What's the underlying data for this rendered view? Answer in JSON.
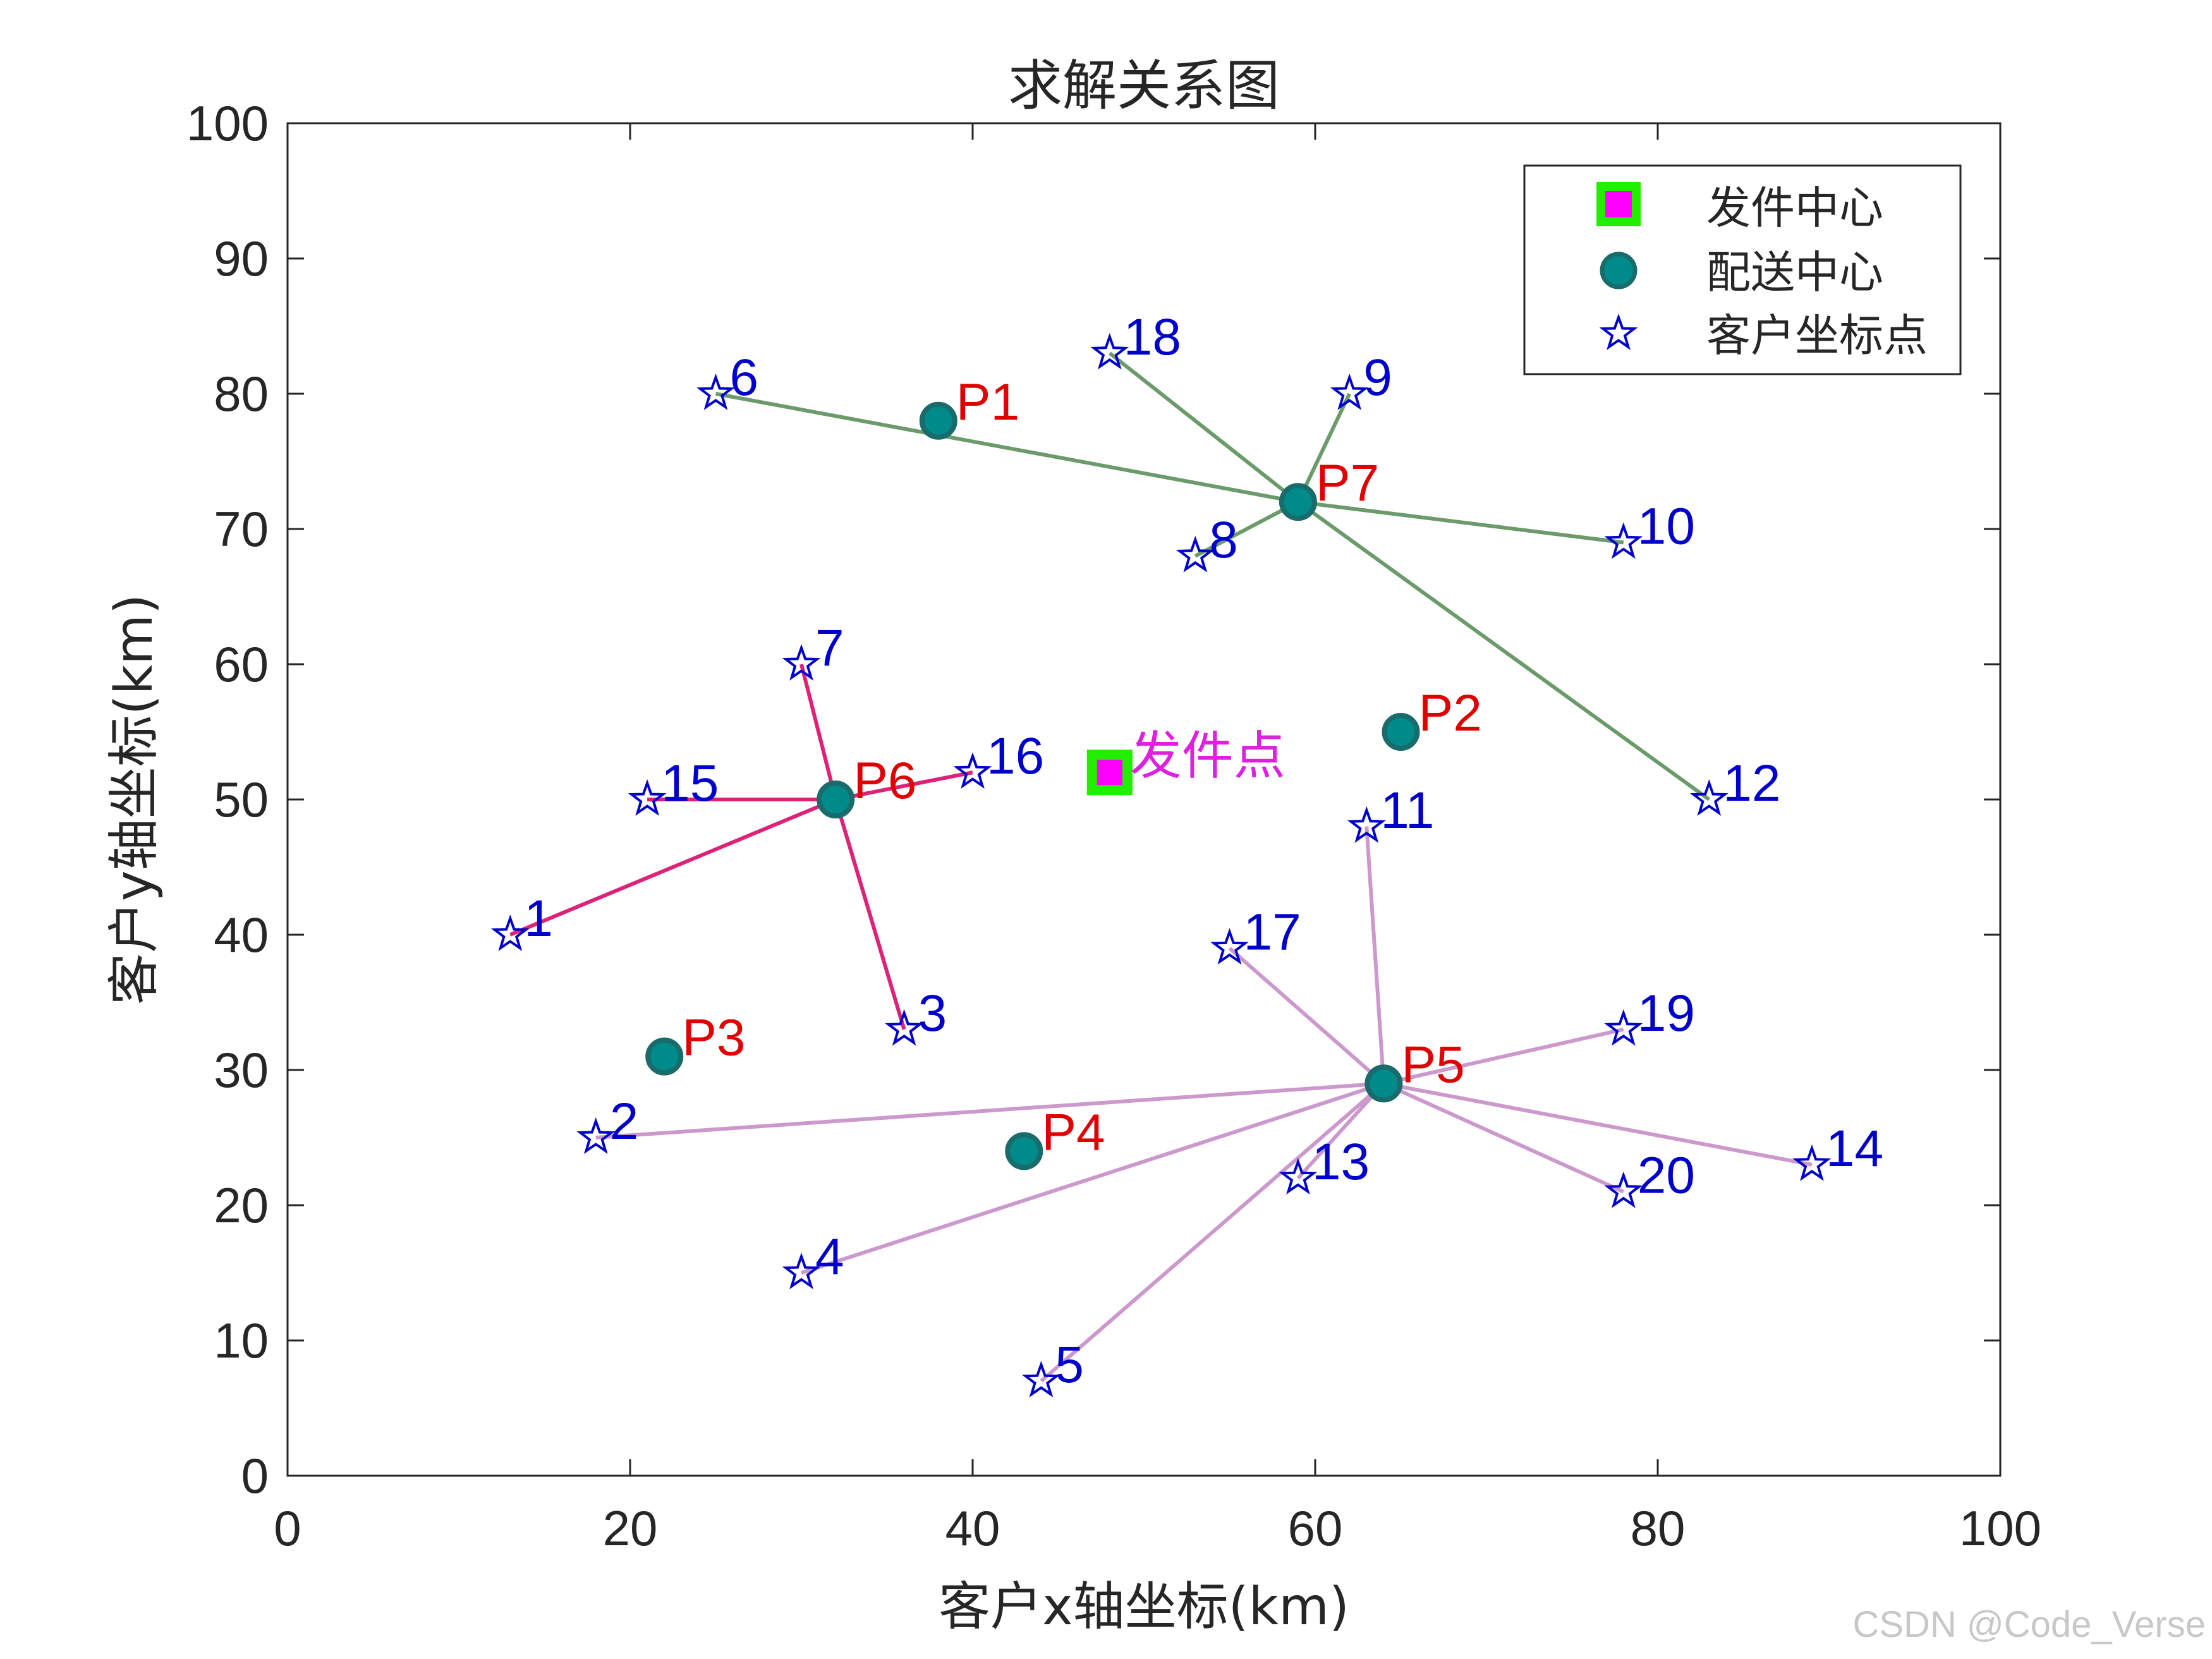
{
  "chart_data": {
    "type": "scatter",
    "title": "求解关系图",
    "xlabel": "客户x轴坐标(km)",
    "ylabel": "客户y轴坐标(km)",
    "xlim": [
      0,
      100
    ],
    "ylim": [
      0,
      100
    ],
    "xticks": [
      0,
      20,
      40,
      60,
      80,
      100
    ],
    "yticks": [
      0,
      10,
      20,
      30,
      40,
      50,
      60,
      70,
      80,
      90,
      100
    ],
    "grid": false,
    "legend": {
      "position": "top-right",
      "entries": [
        "发件中心",
        "配送中心",
        "客户坐标点"
      ]
    },
    "shipping_center": {
      "name": "发件点",
      "x": 48,
      "y": 52,
      "face_color": "#ff00ff",
      "edge_color": "#22ee00"
    },
    "distribution_centers": [
      {
        "name": "P1",
        "x": 38,
        "y": 78
      },
      {
        "name": "P2",
        "x": 65,
        "y": 55
      },
      {
        "name": "P3",
        "x": 22,
        "y": 31
      },
      {
        "name": "P4",
        "x": 43,
        "y": 24
      },
      {
        "name": "P5",
        "x": 64,
        "y": 29
      },
      {
        "name": "P6",
        "x": 32,
        "y": 50
      },
      {
        "name": "P7",
        "x": 59,
        "y": 72
      }
    ],
    "customers": [
      {
        "name": "1",
        "x": 13,
        "y": 40
      },
      {
        "name": "2",
        "x": 18,
        "y": 25
      },
      {
        "name": "3",
        "x": 36,
        "y": 33
      },
      {
        "name": "4",
        "x": 30,
        "y": 15
      },
      {
        "name": "5",
        "x": 44,
        "y": 7
      },
      {
        "name": "6",
        "x": 25,
        "y": 80
      },
      {
        "name": "7",
        "x": 30,
        "y": 60
      },
      {
        "name": "8",
        "x": 53,
        "y": 68
      },
      {
        "name": "9",
        "x": 62,
        "y": 80
      },
      {
        "name": "10",
        "x": 78,
        "y": 69
      },
      {
        "name": "11",
        "x": 63,
        "y": 48
      },
      {
        "name": "12",
        "x": 83,
        "y": 50
      },
      {
        "name": "13",
        "x": 59,
        "y": 22
      },
      {
        "name": "14",
        "x": 89,
        "y": 23
      },
      {
        "name": "15",
        "x": 21,
        "y": 50
      },
      {
        "name": "16",
        "x": 40,
        "y": 52
      },
      {
        "name": "17",
        "x": 55,
        "y": 39
      },
      {
        "name": "18",
        "x": 48,
        "y": 83
      },
      {
        "name": "19",
        "x": 78,
        "y": 33
      },
      {
        "name": "20",
        "x": 78,
        "y": 21
      }
    ],
    "assignments": [
      {
        "center": "P7",
        "color": "#6b9a6b",
        "customers": [
          "6",
          "18",
          "9",
          "8",
          "10",
          "12"
        ]
      },
      {
        "center": "P6",
        "color": "#dd2277",
        "customers": [
          "7",
          "15",
          "16",
          "1",
          "3"
        ]
      },
      {
        "center": "P5",
        "color": "#cc99cc",
        "customers": [
          "11",
          "17",
          "19",
          "2",
          "4",
          "13",
          "5",
          "14",
          "20"
        ]
      }
    ],
    "colors": {
      "center_fill": "#008b8b",
      "center_edge": "#1a6b6b",
      "customer_star": "#0000cc",
      "customer_label": "#0000cc",
      "center_label": "#e00000",
      "ship_label": "#e020e0"
    }
  },
  "watermark": "CSDN @Code_Verse"
}
